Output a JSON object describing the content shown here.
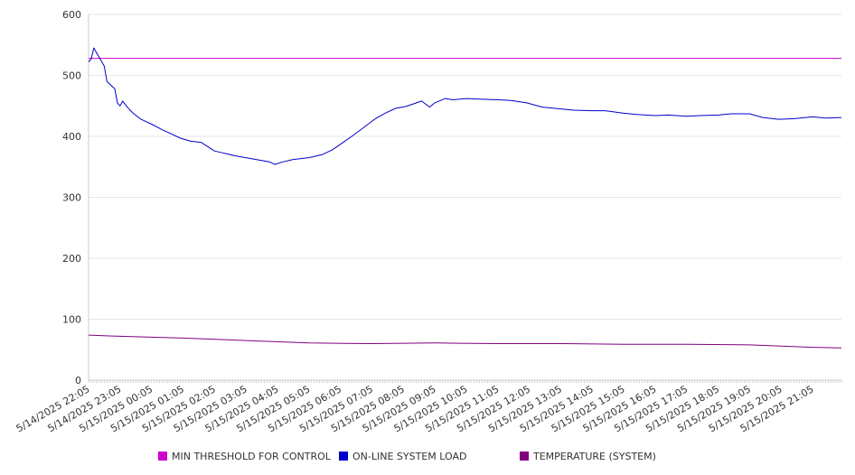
{
  "chart_data": {
    "type": "line",
    "title": "",
    "xlabel": "",
    "ylabel": "",
    "ylim": [
      0,
      600
    ],
    "y_ticks": [
      0,
      100,
      200,
      300,
      400,
      500,
      600
    ],
    "x_range": [
      "5/14/2025 22:05",
      "5/15/2025 22:00"
    ],
    "x_tick_labels": [
      "5/14/2025 22:05",
      "5/14/2025 23:05",
      "5/15/2025 00:05",
      "5/15/2025 01:05",
      "5/15/2025 02:05",
      "5/15/2025 03:05",
      "5/15/2025 04:05",
      "5/15/2025 05:05",
      "5/15/2025 06:05",
      "5/15/2025 07:05",
      "5/15/2025 08:05",
      "5/15/2025 09:05",
      "5/15/2025 10:05",
      "5/15/2025 11:05",
      "5/15/2025 12:05",
      "5/15/2025 13:05",
      "5/15/2025 14:05",
      "5/15/2025 15:05",
      "5/15/2025 16:05",
      "5/15/2025 17:05",
      "5/15/2025 18:05",
      "5/15/2025 19:05",
      "5/15/2025 20:05",
      "5/15/2025 21:05"
    ],
    "grid": "horizontal",
    "legend_position": "bottom",
    "series": [
      {
        "name": "MIN THRESHOLD FOR CONTROL",
        "color": "#cc00cc",
        "x": [
          "5/14/2025 22:05",
          "5/15/2025 22:00"
        ],
        "values": [
          528,
          528
        ]
      },
      {
        "name": "ON-LINE SYSTEM LOAD",
        "color": "#0000cc",
        "x": [
          "5/14/2025 22:05",
          "5/14/2025 22:10",
          "5/14/2025 22:15",
          "5/14/2025 22:25",
          "5/14/2025 22:35",
          "5/14/2025 22:40",
          "5/14/2025 22:55",
          "5/14/2025 23:00",
          "5/14/2025 23:05",
          "5/14/2025 23:10",
          "5/14/2025 23:20",
          "5/14/2025 23:30",
          "5/14/2025 23:45",
          "5/15/2025 00:05",
          "5/15/2025 00:25",
          "5/15/2025 00:40",
          "5/15/2025 01:00",
          "5/15/2025 01:20",
          "5/15/2025 01:40",
          "5/15/2025 02:05",
          "5/15/2025 02:20",
          "5/15/2025 02:45",
          "5/15/2025 03:05",
          "5/15/2025 03:30",
          "5/15/2025 03:50",
          "5/15/2025 04:00",
          "5/15/2025 04:15",
          "5/15/2025 04:35",
          "5/15/2025 05:05",
          "5/15/2025 05:30",
          "5/15/2025 05:50",
          "5/15/2025 06:10",
          "5/15/2025 06:30",
          "5/15/2025 06:50",
          "5/15/2025 07:10",
          "5/15/2025 07:30",
          "5/15/2025 07:50",
          "5/15/2025 08:10",
          "5/15/2025 08:30",
          "5/15/2025 08:40",
          "5/15/2025 08:55",
          "5/15/2025 09:05",
          "5/15/2025 09:25",
          "5/15/2025 09:40",
          "5/15/2025 10:05",
          "5/15/2025 10:30",
          "5/15/2025 11:05",
          "5/15/2025 11:30",
          "5/15/2025 12:00",
          "5/15/2025 12:30",
          "5/15/2025 13:05",
          "5/15/2025 13:30",
          "5/15/2025 14:05",
          "5/15/2025 14:30",
          "5/15/2025 15:05",
          "5/15/2025 15:30",
          "5/15/2025 16:05",
          "5/15/2025 16:30",
          "5/15/2025 17:05",
          "5/15/2025 17:30",
          "5/15/2025 18:05",
          "5/15/2025 18:30",
          "5/15/2025 19:05",
          "5/15/2025 19:30",
          "5/15/2025 20:00",
          "5/15/2025 20:30",
          "5/15/2025 21:05",
          "5/15/2025 21:30",
          "5/15/2025 22:00"
        ],
        "values": [
          522,
          527,
          545,
          530,
          515,
          490,
          478,
          455,
          450,
          458,
          447,
          438,
          428,
          420,
          411,
          405,
          397,
          392,
          390,
          376,
          373,
          368,
          365,
          361,
          358,
          354,
          358,
          362,
          365,
          370,
          378,
          390,
          402,
          415,
          428,
          438,
          446,
          449,
          455,
          458,
          448,
          455,
          462,
          460,
          462,
          461,
          460,
          459,
          455,
          448,
          445,
          443,
          442,
          442,
          438,
          436,
          434,
          435,
          433,
          434,
          435,
          437,
          437,
          431,
          428,
          429,
          432,
          430,
          431
        ]
      },
      {
        "name": "TEMPERATURE (SYSTEM)",
        "color": "#800080",
        "x": [
          "5/14/2025 22:05",
          "5/14/2025 23:05",
          "5/15/2025 01:05",
          "5/15/2025 03:05",
          "5/15/2025 05:05",
          "5/15/2025 07:05",
          "5/15/2025 09:05",
          "5/15/2025 11:05",
          "5/15/2025 13:05",
          "5/15/2025 15:05",
          "5/15/2025 17:05",
          "5/15/2025 19:05",
          "5/15/2025 20:05",
          "5/15/2025 21:05",
          "5/15/2025 22:00"
        ],
        "values": [
          74,
          72,
          69,
          65,
          61,
          60,
          61,
          60,
          60,
          59,
          59,
          58,
          56,
          54,
          53
        ]
      }
    ]
  }
}
